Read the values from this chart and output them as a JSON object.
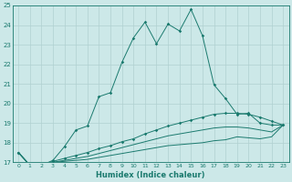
{
  "xlabel": "Humidex (Indice chaleur)",
  "bg_color": "#cce8e8",
  "grid_color": "#b0d0d0",
  "line_color": "#1a7a6e",
  "xlim": [
    -0.5,
    23.5
  ],
  "ylim": [
    17,
    25
  ],
  "xticks": [
    0,
    1,
    2,
    3,
    4,
    5,
    6,
    7,
    8,
    9,
    10,
    11,
    12,
    13,
    14,
    15,
    16,
    17,
    18,
    19,
    20,
    21,
    22,
    23
  ],
  "yticks": [
    17,
    18,
    19,
    20,
    21,
    22,
    23,
    24,
    25
  ],
  "line1_x": [
    0,
    1,
    2,
    3,
    4,
    5,
    6,
    7,
    8,
    9,
    10,
    11,
    12,
    13,
    14,
    15,
    16,
    17,
    18,
    19,
    20,
    21,
    22,
    23
  ],
  "line1_y": [
    17.5,
    16.85,
    16.85,
    17.1,
    17.8,
    18.65,
    18.85,
    20.35,
    20.55,
    22.1,
    23.35,
    24.15,
    23.05,
    24.05,
    23.7,
    24.8,
    23.45,
    20.95,
    20.25,
    19.45,
    19.5,
    19.0,
    18.9,
    18.9
  ],
  "line2_x": [
    0,
    1,
    2,
    3,
    4,
    5,
    6,
    7,
    8,
    9,
    10,
    11,
    12,
    13,
    14,
    15,
    16,
    17,
    18,
    19,
    20,
    21,
    22,
    23
  ],
  "line2_y": [
    17.5,
    16.85,
    16.85,
    17.05,
    17.2,
    17.35,
    17.5,
    17.7,
    17.85,
    18.05,
    18.2,
    18.45,
    18.65,
    18.85,
    19.0,
    19.15,
    19.3,
    19.45,
    19.5,
    19.5,
    19.45,
    19.3,
    19.1,
    18.9
  ],
  "line3_x": [
    0,
    1,
    2,
    3,
    4,
    5,
    6,
    7,
    8,
    9,
    10,
    11,
    12,
    13,
    14,
    15,
    16,
    17,
    18,
    19,
    20,
    21,
    22,
    23
  ],
  "line3_y": [
    17.5,
    16.85,
    16.85,
    17.0,
    17.1,
    17.2,
    17.3,
    17.45,
    17.6,
    17.75,
    17.9,
    18.05,
    18.2,
    18.35,
    18.45,
    18.55,
    18.65,
    18.75,
    18.8,
    18.8,
    18.75,
    18.65,
    18.55,
    18.9
  ],
  "line4_x": [
    0,
    1,
    2,
    3,
    4,
    5,
    6,
    7,
    8,
    9,
    10,
    11,
    12,
    13,
    14,
    15,
    16,
    17,
    18,
    19,
    20,
    21,
    22,
    23
  ],
  "line4_y": [
    17.5,
    16.85,
    16.85,
    17.0,
    17.05,
    17.1,
    17.15,
    17.25,
    17.35,
    17.45,
    17.55,
    17.65,
    17.75,
    17.85,
    17.9,
    17.95,
    18.0,
    18.1,
    18.15,
    18.3,
    18.25,
    18.2,
    18.3,
    18.9
  ]
}
